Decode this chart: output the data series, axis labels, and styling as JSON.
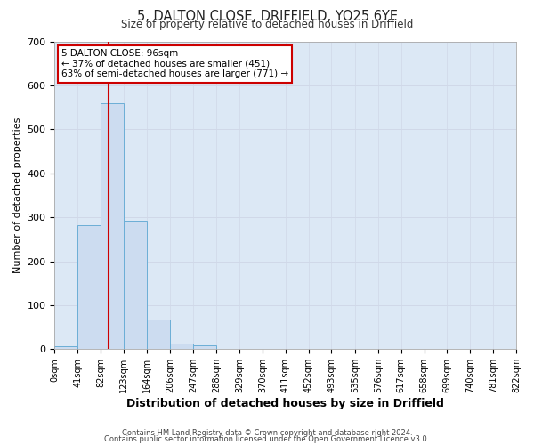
{
  "title": "5, DALTON CLOSE, DRIFFIELD, YO25 6YE",
  "subtitle": "Size of property relative to detached houses in Driffield",
  "xlabel": "Distribution of detached houses by size in Driffield",
  "ylabel": "Number of detached properties",
  "bin_edges": [
    0,
    41,
    82,
    123,
    164,
    206,
    247,
    288,
    329,
    370,
    411,
    452,
    493,
    535,
    576,
    617,
    658,
    699,
    740,
    781,
    822
  ],
  "bin_counts": [
    7,
    283,
    560,
    292,
    68,
    13,
    8,
    0,
    0,
    0,
    0,
    0,
    0,
    0,
    0,
    0,
    0,
    0,
    0,
    0
  ],
  "bar_color": "#ccdcf0",
  "bar_edge_color": "#6baed6",
  "grid_color": "#d0d8e8",
  "plot_bg_color": "#dce8f5",
  "fig_bg_color": "#ffffff",
  "vline_x": 96,
  "vline_color": "#cc0000",
  "annotation_title": "5 DALTON CLOSE: 96sqm",
  "annotation_line1": "← 37% of detached houses are smaller (451)",
  "annotation_line2": "63% of semi-detached houses are larger (771) →",
  "ylim": [
    0,
    700
  ],
  "yticks": [
    0,
    100,
    200,
    300,
    400,
    500,
    600,
    700
  ],
  "tick_labels": [
    "0sqm",
    "41sqm",
    "82sqm",
    "123sqm",
    "164sqm",
    "206sqm",
    "247sqm",
    "288sqm",
    "329sqm",
    "370sqm",
    "411sqm",
    "452sqm",
    "493sqm",
    "535sqm",
    "576sqm",
    "617sqm",
    "658sqm",
    "699sqm",
    "740sqm",
    "781sqm",
    "822sqm"
  ],
  "footer1": "Contains HM Land Registry data © Crown copyright and database right 2024.",
  "footer2": "Contains public sector information licensed under the Open Government Licence v3.0."
}
